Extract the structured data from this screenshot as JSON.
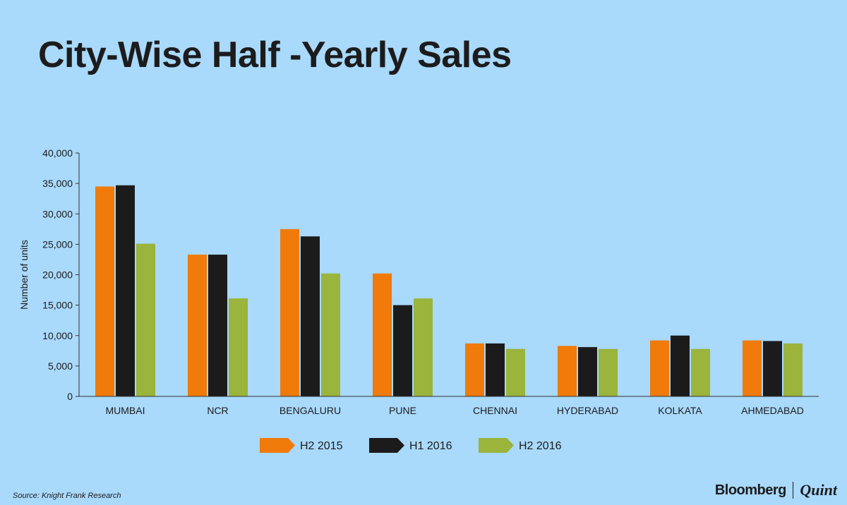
{
  "title": "City-Wise Half -Yearly Sales",
  "source": "Source: Knight Frank Research",
  "brand": {
    "left": "Bloomberg",
    "right": "Quint"
  },
  "chart_data": {
    "type": "bar",
    "ylabel": "Number of units",
    "ylim": [
      0,
      40000
    ],
    "yticks": [
      0,
      5000,
      10000,
      15000,
      20000,
      25000,
      30000,
      35000,
      40000
    ],
    "ytick_labels": [
      "0",
      "5,000",
      "10,000",
      "15,000",
      "20,000",
      "25,000",
      "30,000",
      "35,000",
      "40,000"
    ],
    "categories": [
      "MUMBAI",
      "NCR",
      "BENGALURU",
      "PUNE",
      "CHENNAI",
      "HYDERABAD",
      "KOLKATA",
      "AHMEDABAD"
    ],
    "series": [
      {
        "name": "H2 2015",
        "color": "#f07a0a",
        "values": [
          34500,
          23300,
          27500,
          20200,
          8700,
          8300,
          9200,
          9200
        ]
      },
      {
        "name": "H1 2016",
        "color": "#1c1b1c",
        "values": [
          34700,
          23300,
          26300,
          15000,
          8700,
          8100,
          10000,
          9100
        ]
      },
      {
        "name": "H2 2016",
        "color": "#9ab43c",
        "values": [
          25100,
          16100,
          20200,
          16100,
          7800,
          7800,
          7800,
          8700
        ]
      }
    ],
    "legend_position": "bottom",
    "grid": false
  }
}
